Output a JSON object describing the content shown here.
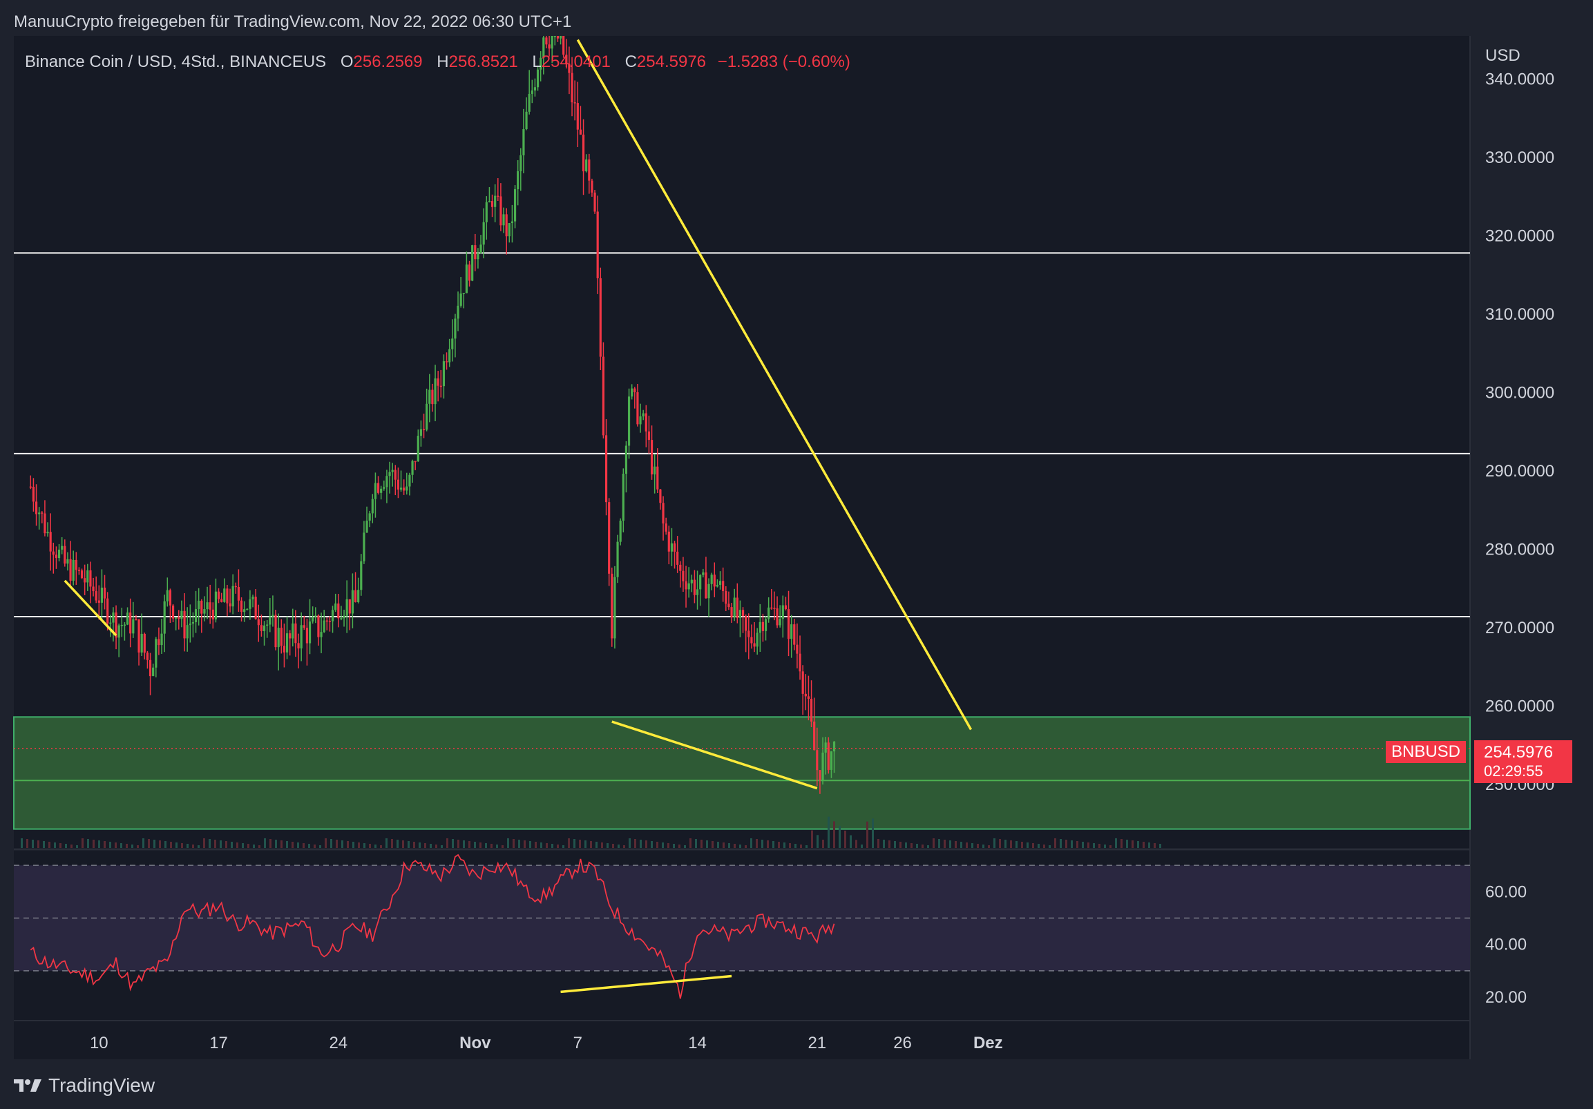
{
  "header": {
    "publisher_text": "ManuuCrypto freigegeben für TradingView.com, Nov 22, 2022 06:30 UTC+1"
  },
  "legend": {
    "symbol_title": "Binance Coin / USD, 4Std., BINANCEUS",
    "o_label": "O",
    "o_value": "256.2569",
    "h_label": "H",
    "h_value": "256.8521",
    "l_label": "L",
    "l_value": "254.0401",
    "c_label": "C",
    "c_value": "254.5976",
    "change": "−1.5283 (−0.60%)"
  },
  "price_scale": {
    "currency": "USD"
  },
  "last_price": {
    "ticker": "BNBUSD",
    "price": "254.5976",
    "countdown": "02:29:55"
  },
  "footer": {
    "brand": "TradingView"
  },
  "colors": {
    "up": "#089981",
    "up_body": "#4caf50",
    "down": "#f23645",
    "trendline": "#ffeb3b",
    "zone": "#2e5a35",
    "rsi_band": "#2a2740",
    "rsi_line": "#f23645"
  },
  "chart_data": [
    {
      "type": "candlestick",
      "title": "Binance Coin / USD, 4Std., BINANCEUS",
      "ylim": [
        243.5,
        346
      ],
      "yticks": [
        "250.0000",
        "260.0000",
        "270.0000",
        "280.0000",
        "290.0000",
        "300.0000",
        "310.0000",
        "320.0000",
        "330.0000",
        "340.0000"
      ],
      "xticks": [
        "10",
        "17",
        "24",
        "Nov",
        "7",
        "14",
        "21",
        "26",
        "Dez"
      ],
      "horizontal_levels": [
        317.8,
        292.2,
        271.4,
        250.5
      ],
      "support_zone": [
        244.3,
        258.6
      ],
      "path": [
        {
          "d": "Oct 6",
          "p": 288
        },
        {
          "d": "Oct 7",
          "p": 282
        },
        {
          "d": "Oct 8",
          "p": 278
        },
        {
          "d": "Oct 9",
          "p": 276.5
        },
        {
          "d": "Oct 10",
          "p": 274
        },
        {
          "d": "Oct 11",
          "p": 270.5
        },
        {
          "d": "Oct 12",
          "p": 270.5
        },
        {
          "d": "Oct 13",
          "p": 265
        },
        {
          "d": "Oct 14",
          "p": 274
        },
        {
          "d": "Oct 15",
          "p": 270
        },
        {
          "d": "Oct 16",
          "p": 272
        },
        {
          "d": "Oct 17",
          "p": 273
        },
        {
          "d": "Oct 18",
          "p": 274
        },
        {
          "d": "Oct 19",
          "p": 272.5
        },
        {
          "d": "Oct 20",
          "p": 270
        },
        {
          "d": "Oct 21",
          "p": 268
        },
        {
          "d": "Oct 22",
          "p": 269.5
        },
        {
          "d": "Oct 23",
          "p": 270
        },
        {
          "d": "Oct 24",
          "p": 273
        },
        {
          "d": "Oct 25",
          "p": 273
        },
        {
          "d": "Oct 26",
          "p": 288
        },
        {
          "d": "Oct 27",
          "p": 290
        },
        {
          "d": "Oct 28",
          "p": 287
        },
        {
          "d": "Oct 29",
          "p": 297
        },
        {
          "d": "Oct 30",
          "p": 302
        },
        {
          "d": "Oct 31",
          "p": 312
        },
        {
          "d": "Nov 1",
          "p": 318
        },
        {
          "d": "Nov 2",
          "p": 325
        },
        {
          "d": "Nov 3",
          "p": 320
        },
        {
          "d": "Nov 4",
          "p": 335
        },
        {
          "d": "Nov 5",
          "p": 346
        },
        {
          "d": "Nov 6",
          "p": 345
        },
        {
          "d": "Nov 7",
          "p": 334
        },
        {
          "d": "Nov 8",
          "p": 322
        },
        {
          "d": "Nov 9",
          "p": 270
        },
        {
          "d": "Nov 10",
          "p": 300
        },
        {
          "d": "Nov 11",
          "p": 295
        },
        {
          "d": "Nov 12",
          "p": 283
        },
        {
          "d": "Nov 13",
          "p": 277
        },
        {
          "d": "Nov 14",
          "p": 275
        },
        {
          "d": "Nov 15",
          "p": 276
        },
        {
          "d": "Nov 16",
          "p": 273
        },
        {
          "d": "Nov 17",
          "p": 268
        },
        {
          "d": "Nov 18",
          "p": 272
        },
        {
          "d": "Nov 19",
          "p": 272
        },
        {
          "d": "Nov 20",
          "p": 266
        },
        {
          "d": "Nov 21",
          "p": 252
        },
        {
          "d": "Nov 22",
          "p": 254.6
        }
      ],
      "trendlines": [
        {
          "from": [
            "Oct 8",
            276
          ],
          "to": [
            "Oct 11",
            269
          ]
        },
        {
          "from": [
            "Nov 7",
            345
          ],
          "to": [
            "Nov 30",
            257
          ]
        },
        {
          "from": [
            "Nov 9",
            258
          ],
          "to": [
            "Nov 21",
            249.5
          ]
        }
      ]
    },
    {
      "type": "line",
      "series": [
        {
          "values": [
            37,
            33,
            31,
            29,
            27,
            33,
            24,
            30,
            33,
            54,
            52,
            55,
            48,
            48,
            44,
            46,
            48,
            36,
            40,
            47,
            44,
            56,
            71,
            69,
            66,
            72,
            66,
            70,
            69,
            60,
            58,
            64,
            70,
            68,
            54,
            46,
            40,
            34,
            22,
            46,
            45,
            43,
            47,
            49,
            47,
            45,
            43,
            48,
            49,
            35
          ]
        }
      ],
      "ylim": [
        13,
        75
      ],
      "yticks": [
        "20.00",
        "40.00",
        "60.00"
      ],
      "levels": [
        30,
        50,
        70
      ],
      "trendline": {
        "from": [
          37,
          22
        ],
        "to": [
          47,
          28
        ]
      }
    }
  ]
}
